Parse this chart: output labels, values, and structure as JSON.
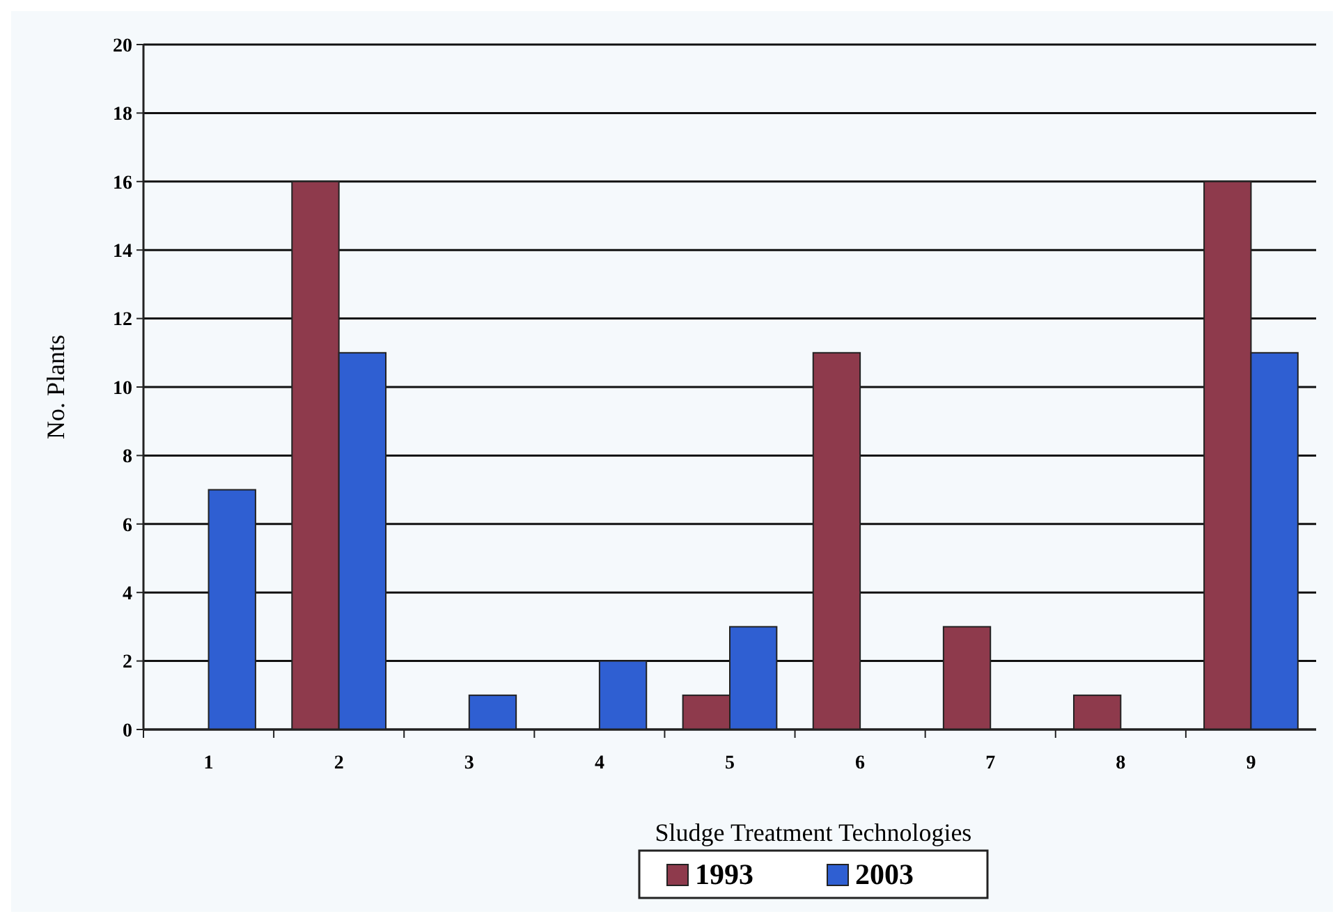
{
  "chart_data": {
    "type": "bar",
    "xlabel": "Sludge Treatment Technologies",
    "ylabel": "No. Plants",
    "categories": [
      "1",
      "2",
      "3",
      "4",
      "5",
      "6",
      "7",
      "8",
      "9"
    ],
    "series": [
      {
        "name": "1993",
        "color": "#8e3a4c",
        "values": [
          0,
          16,
          0,
          0,
          1,
          11,
          3,
          1,
          16
        ]
      },
      {
        "name": "2003",
        "color": "#2f5fd2",
        "values": [
          7,
          11,
          1,
          2,
          3,
          0,
          0,
          0,
          11
        ]
      }
    ],
    "ylim": [
      0,
      20
    ],
    "yticks": [
      0,
      2,
      4,
      6,
      8,
      10,
      12,
      14,
      16,
      18,
      20
    ],
    "grid": "y",
    "legend": "bottom"
  }
}
